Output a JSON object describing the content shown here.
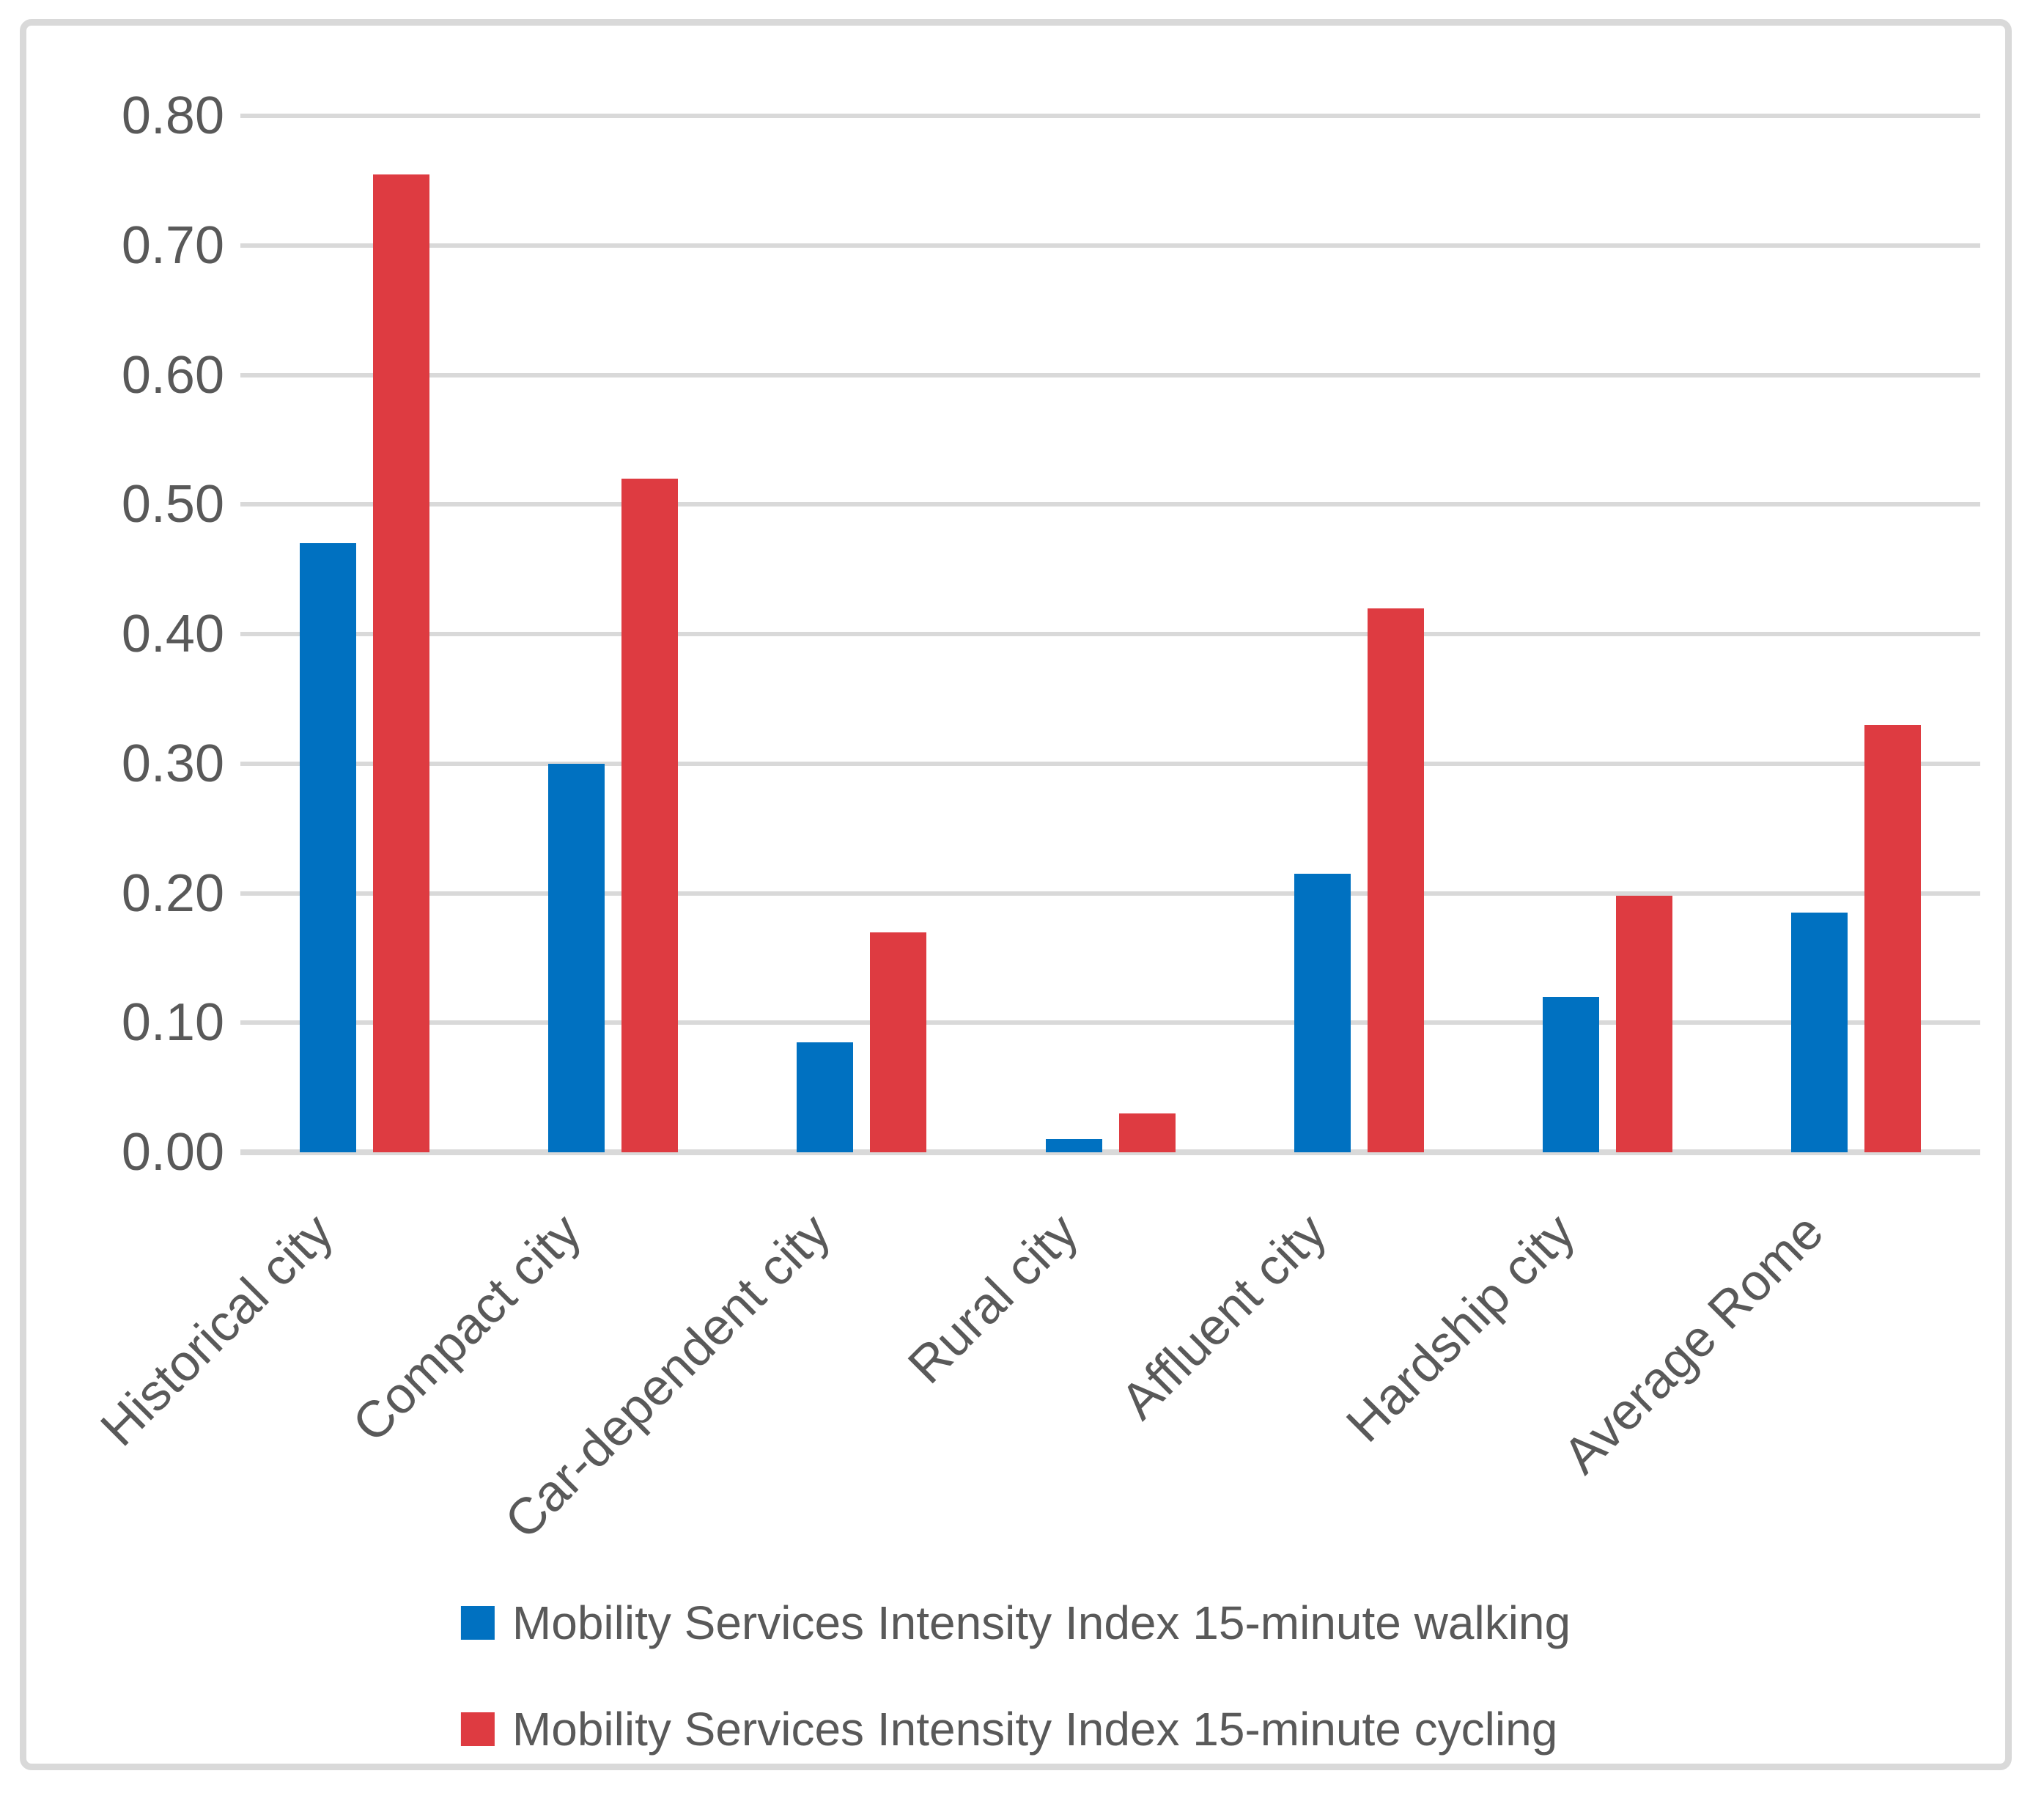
{
  "chart_data": {
    "type": "bar",
    "title": "",
    "categories": [
      "Historical city",
      "Compact city",
      "Car-dependent city",
      "Rural city",
      "Affluent city",
      "Hardship city",
      "Average Rome"
    ],
    "series": [
      {
        "name": "Mobility Services Intensity Index 15-minute walking",
        "color": "#0071C1",
        "values": [
          0.47,
          0.3,
          0.085,
          0.01,
          0.215,
          0.12,
          0.185
        ]
      },
      {
        "name": "Mobility Services Intensity Index 15-minute cycling",
        "color": "#DE3B41",
        "values": [
          0.755,
          0.52,
          0.17,
          0.03,
          0.42,
          0.198,
          0.33
        ]
      }
    ],
    "ylim": [
      0.0,
      0.8
    ],
    "ytick_step": 0.1,
    "ytick_labels": [
      "0.00",
      "0.10",
      "0.20",
      "0.30",
      "0.40",
      "0.50",
      "0.60",
      "0.70",
      "0.80"
    ],
    "grid": true,
    "legend_position": "bottom",
    "colors": {
      "gridline": "#D9D9D9",
      "border": "#D9D9D9",
      "axis_text": "#595959",
      "background": "#FFFFFF"
    }
  }
}
